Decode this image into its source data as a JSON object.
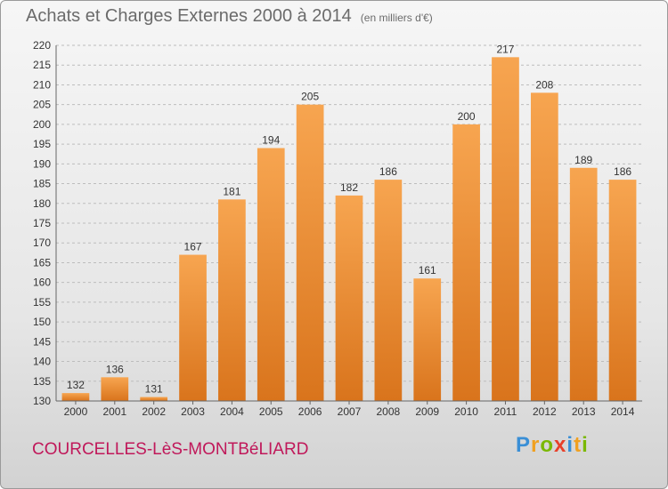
{
  "header": {
    "title": "Achats et Charges Externes 2000 à 2014",
    "unit": "(en milliers d'€)"
  },
  "footer": {
    "place": "COURCELLES-LèS-MONTBéLIARD",
    "logo": {
      "letters": [
        "P",
        "r",
        "o",
        "x",
        "i",
        "t",
        "i"
      ],
      "colors": [
        "#3a8fd6",
        "#f0a020",
        "#7ab800",
        "#e8402a",
        "#3a8fd6",
        "#f0a020",
        "#7ab800"
      ]
    }
  },
  "colors": {
    "bar_top": "#f7a550",
    "bar_bottom": "#d9741c",
    "grid": "#bdbdbd",
    "axis_text": "#333333"
  },
  "chart_data": {
    "type": "bar",
    "categories": [
      "2000",
      "2001",
      "2002",
      "2003",
      "2004",
      "2005",
      "2006",
      "2007",
      "2008",
      "2009",
      "2010",
      "2011",
      "2012",
      "2013",
      "2014"
    ],
    "values": [
      132,
      136,
      131,
      167,
      181,
      194,
      205,
      182,
      186,
      161,
      200,
      217,
      208,
      189,
      186
    ],
    "ylim": [
      130,
      220
    ],
    "yticks": [
      130,
      135,
      140,
      145,
      150,
      155,
      160,
      165,
      170,
      175,
      180,
      185,
      190,
      195,
      200,
      205,
      210,
      215,
      220
    ],
    "grid": "horizontal dashed",
    "data_labels": true
  }
}
